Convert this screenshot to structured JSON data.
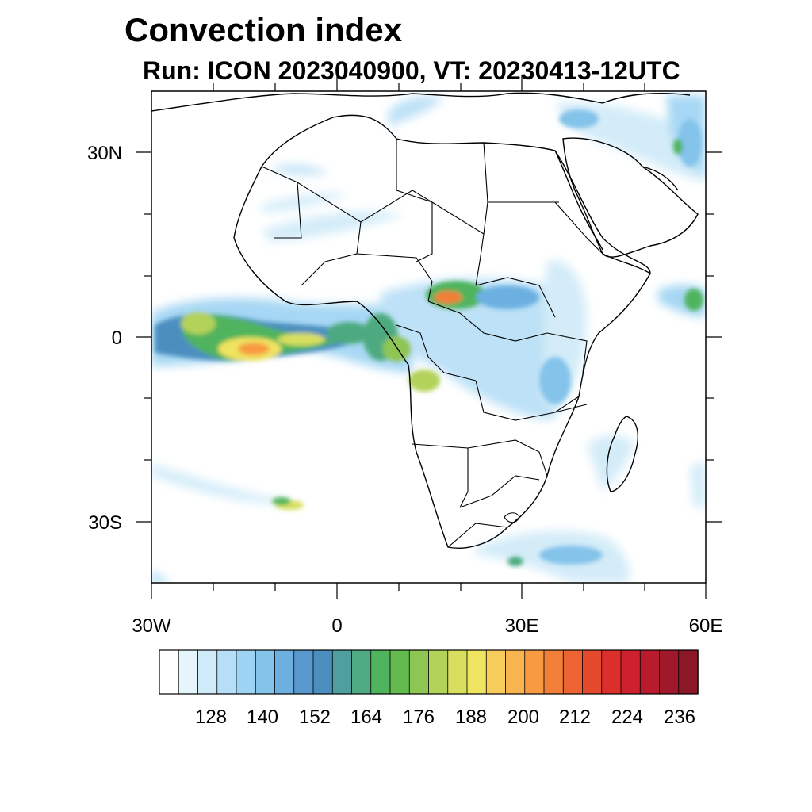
{
  "title": "Convection index",
  "subtitle": "Run: ICON 2023040900,  VT: 20230413-12UTC",
  "lat_labels": [
    "30N",
    "0",
    "30S"
  ],
  "lon_labels": [
    "30W",
    "0",
    "30E",
    "60E"
  ],
  "colorbar": {
    "tick_labels": [
      "128",
      "140",
      "152",
      "164",
      "176",
      "188",
      "200",
      "212",
      "224",
      "236"
    ],
    "colors": [
      "#ffffff",
      "#e6f4fc",
      "#cfeaf8",
      "#b6def6",
      "#9dd3f3",
      "#84c3ea",
      "#6cb0e1",
      "#5a99cf",
      "#4c8fbf",
      "#4f9fa0",
      "#4eaa80",
      "#4fb45d",
      "#63ba4e",
      "#8fc553",
      "#b3d25a",
      "#d8df5e",
      "#f0e35f",
      "#f8cc5a",
      "#f8b54f",
      "#f79a42",
      "#f27f38",
      "#ec6431",
      "#e4482d",
      "#dc2f2c",
      "#cd222d",
      "#b81b2b",
      "#a0192a",
      "#8c1827"
    ]
  },
  "map": {
    "domain": {
      "lon": [
        -30,
        60
      ],
      "lat": [
        -40,
        40
      ]
    },
    "field": "Convection index",
    "coastline_color": "#000000"
  }
}
